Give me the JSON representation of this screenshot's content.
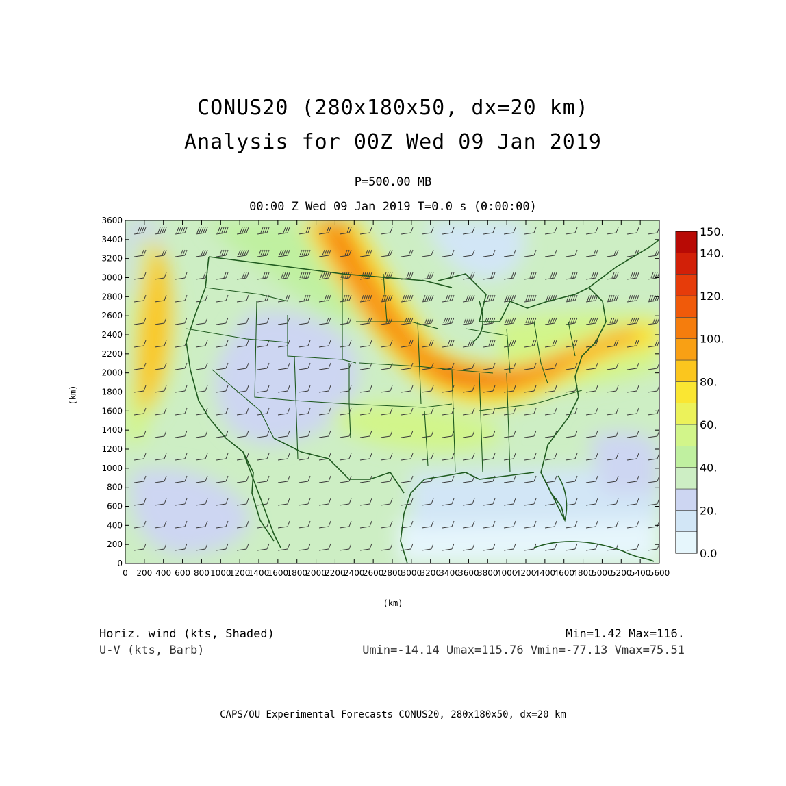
{
  "title": "CONUS20 (280x180x50, dx=20 km)",
  "subtitle": "Analysis for 00Z Wed 09 Jan 2019",
  "level": "P=500.00 MB",
  "time_label": "00:00 Z Wed 09 Jan 2019    T=0.0 s (0:00:00)",
  "axes": {
    "ylabel": "(km)",
    "xlabel": "(km)",
    "x_ticks": [
      "0",
      "200",
      "400",
      "600",
      "800",
      "1000",
      "1200",
      "1400",
      "1600",
      "1800",
      "2000",
      "2200",
      "2400",
      "2600",
      "2800",
      "3000",
      "3200",
      "3400",
      "3600",
      "3800",
      "4000",
      "4200",
      "4400",
      "4600",
      "4800",
      "5000",
      "5200",
      "5400",
      "5600"
    ],
    "y_ticks": [
      "0",
      "200",
      "400",
      "600",
      "800",
      "1000",
      "1200",
      "1400",
      "1600",
      "1800",
      "2000",
      "2200",
      "2400",
      "2600",
      "2800",
      "3000",
      "3200",
      "3400",
      "3600"
    ],
    "xlim": [
      0,
      5600
    ],
    "ylim": [
      0,
      3600
    ]
  },
  "colorbar": {
    "labels": [
      "150.",
      "140.",
      "120.",
      "100.",
      "80.",
      "60.",
      "40.",
      "20.",
      "0.0"
    ],
    "levels": [
      0,
      10,
      20,
      30,
      40,
      50,
      60,
      70,
      80,
      90,
      100,
      110,
      120,
      130,
      140,
      150
    ],
    "colors": [
      "#e6f6fc",
      "#d2e6f6",
      "#cdd6f2",
      "#cdeec4",
      "#c0f0a0",
      "#d2f58a",
      "#ecf25a",
      "#fae632",
      "#fbc61e",
      "#f9a014",
      "#f57d0d",
      "#f05a0a",
      "#e63c0a",
      "#d22008",
      "#b80a05"
    ]
  },
  "footer": {
    "field1": "Horiz. wind (kts, Shaded)",
    "field2": "U-V (kts, Barb)",
    "minmax": "Min=1.42 Max=116.",
    "uvminmax": "Umin=-14.14 Umax=115.76 Vmin=-77.13 Vmax=75.51"
  },
  "credit": "CAPS/OU Experimental Forecasts  CONUS20, 280x180x50, dx=20 km",
  "colors": {
    "map_lines": "#1f5a1f",
    "barbs": "#3a3a3a"
  }
}
